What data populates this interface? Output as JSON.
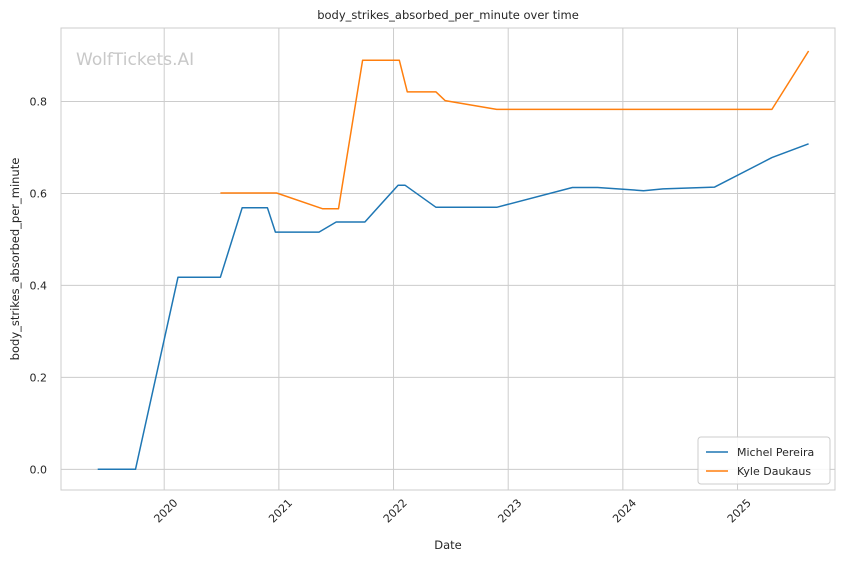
{
  "chart_data": {
    "type": "line",
    "title": "body_strikes_absorbed_per_minute over time",
    "xlabel": "Date",
    "ylabel": "body_strikes_absorbed_per_minute",
    "watermark": "WolfTickets.AI",
    "xlim": [
      2019.1,
      2025.85
    ],
    "ylim": [
      -0.045,
      0.96
    ],
    "x_ticks": [
      2020,
      2021,
      2022,
      2023,
      2024,
      2025
    ],
    "x_tick_labels": [
      "2020",
      "2021",
      "2022",
      "2023",
      "2024",
      "2025"
    ],
    "y_ticks": [
      0.0,
      0.2,
      0.4,
      0.6,
      0.8
    ],
    "y_tick_labels": [
      "0.0",
      "0.2",
      "0.4",
      "0.6",
      "0.8"
    ],
    "grid": true,
    "legend_position": "bottom-right",
    "series": [
      {
        "name": "Michel Pereira",
        "color": "#1f77b4",
        "points": [
          [
            2019.42,
            0.0
          ],
          [
            2019.75,
            0.0
          ],
          [
            2020.12,
            0.418
          ],
          [
            2020.49,
            0.418
          ],
          [
            2020.68,
            0.569
          ],
          [
            2020.9,
            0.569
          ],
          [
            2020.97,
            0.516
          ],
          [
            2021.35,
            0.516
          ],
          [
            2021.5,
            0.538
          ],
          [
            2021.75,
            0.538
          ],
          [
            2022.04,
            0.618
          ],
          [
            2022.1,
            0.618
          ],
          [
            2022.37,
            0.57
          ],
          [
            2022.9,
            0.57
          ],
          [
            2023.56,
            0.613
          ],
          [
            2023.78,
            0.613
          ],
          [
            2024.18,
            0.606
          ],
          [
            2024.35,
            0.61
          ],
          [
            2024.8,
            0.614
          ],
          [
            2025.3,
            0.678
          ],
          [
            2025.62,
            0.708
          ]
        ]
      },
      {
        "name": "Kyle Daukaus",
        "color": "#ff7f0e",
        "points": [
          [
            2020.49,
            0.601
          ],
          [
            2020.98,
            0.601
          ],
          [
            2021.38,
            0.567
          ],
          [
            2021.52,
            0.567
          ],
          [
            2021.73,
            0.89
          ],
          [
            2022.05,
            0.89
          ],
          [
            2022.12,
            0.821
          ],
          [
            2022.37,
            0.821
          ],
          [
            2022.45,
            0.802
          ],
          [
            2022.9,
            0.783
          ],
          [
            2025.3,
            0.783
          ],
          [
            2025.62,
            0.91
          ]
        ]
      }
    ]
  }
}
